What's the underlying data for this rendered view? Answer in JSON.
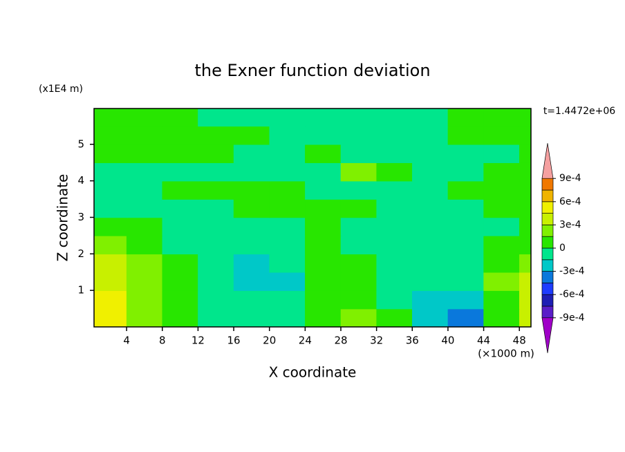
{
  "chart_data": {
    "type": "contour",
    "title": "the Exner function deviation",
    "x_label": "X coordinate",
    "y_label": "Z coordinate",
    "x_unit": "(×1000 m)",
    "y_unit": "(x1E4 m)",
    "time_label": "t=1.4472e+06",
    "xlim": [
      0.35,
      49.3
    ],
    "ylim": [
      0,
      5.98
    ],
    "xticks": [
      4,
      8,
      12,
      16,
      20,
      24,
      28,
      32,
      36,
      40,
      44,
      48
    ],
    "yticks": [
      1,
      2,
      3,
      4,
      5
    ],
    "x": [
      2,
      6,
      10,
      14,
      18,
      22,
      26,
      30,
      34,
      38,
      42,
      46,
      50
    ],
    "y": [
      0.25,
      0.75,
      1.25,
      1.75,
      2.25,
      2.75,
      3.25,
      3.75,
      4.25,
      4.75,
      5.25,
      5.75
    ],
    "z": [
      [
        0.0005,
        0.0002,
        7e-05,
        -7e-05,
        -7e-05,
        -7e-05,
        7e-05,
        0.0002,
        7e-05,
        -0.0002,
        -0.00035,
        7e-05,
        0.00035
      ],
      [
        0.0005,
        0.0002,
        7e-05,
        -7e-05,
        -7e-05,
        -7e-05,
        7e-05,
        7e-05,
        -7e-05,
        -0.0002,
        -0.0002,
        7e-05,
        0.00035
      ],
      [
        0.00035,
        0.0002,
        7e-05,
        -7e-05,
        -0.0002,
        -0.0002,
        7e-05,
        7e-05,
        -7e-05,
        -7e-05,
        -7e-05,
        0.0002,
        0.00035
      ],
      [
        0.00035,
        0.0002,
        7e-05,
        -7e-05,
        -0.0002,
        -7e-05,
        7e-05,
        7e-05,
        -7e-05,
        -7e-05,
        -7e-05,
        7e-05,
        0.0002
      ],
      [
        0.0002,
        7e-05,
        -7e-05,
        -7e-05,
        -7e-05,
        -7e-05,
        7e-05,
        -7e-05,
        -7e-05,
        -7e-05,
        -7e-05,
        7e-05,
        7e-05
      ],
      [
        7e-05,
        7e-05,
        -7e-05,
        -7e-05,
        -7e-05,
        -7e-05,
        7e-05,
        -7e-05,
        -7e-05,
        -7e-05,
        -7e-05,
        -7e-05,
        7e-05
      ],
      [
        -7e-05,
        -7e-05,
        -7e-05,
        -7e-05,
        7e-05,
        7e-05,
        7e-05,
        7e-05,
        -7e-05,
        -7e-05,
        -7e-05,
        7e-05,
        7e-05
      ],
      [
        -7e-05,
        -7e-05,
        7e-05,
        7e-05,
        7e-05,
        7e-05,
        -7e-05,
        -7e-05,
        -7e-05,
        -7e-05,
        7e-05,
        7e-05,
        7e-05
      ],
      [
        -7e-05,
        -7e-05,
        -7e-05,
        -7e-05,
        -7e-05,
        -7e-05,
        -7e-05,
        0.0002,
        7e-05,
        -7e-05,
        -7e-05,
        7e-05,
        7e-05
      ],
      [
        7e-05,
        7e-05,
        7e-05,
        7e-05,
        -7e-05,
        -7e-05,
        7e-05,
        -7e-05,
        -7e-05,
        -7e-05,
        -7e-05,
        -7e-05,
        7e-05
      ],
      [
        7e-05,
        7e-05,
        7e-05,
        7e-05,
        7e-05,
        -7e-05,
        -7e-05,
        -7e-05,
        -7e-05,
        -7e-05,
        7e-05,
        7e-05,
        7e-05
      ],
      [
        7e-05,
        7e-05,
        7e-05,
        -7e-05,
        -7e-05,
        -7e-05,
        -7e-05,
        -7e-05,
        -7e-05,
        -7e-05,
        7e-05,
        7e-05,
        7e-05
      ]
    ],
    "levels": [
      -0.0009,
      -0.00075,
      -0.0006,
      -0.00045,
      -0.0003,
      -0.00015,
      0,
      0.00015,
      0.0003,
      0.00045,
      0.0006,
      0.00075,
      0.0009
    ],
    "colors": [
      "#a000c8",
      "#5a1ec8",
      "#1e1eb4",
      "#1e3cff",
      "#0a78dc",
      "#00c8c8",
      "#00e68c",
      "#28e600",
      "#80f000",
      "#c8f000",
      "#f0f000",
      "#f0b400",
      "#f07800",
      "#f03c00",
      "#f5a0a0"
    ],
    "colorbar_ticks": [
      {
        "value": 0.0009,
        "label": "9e-4"
      },
      {
        "value": 0.0006,
        "label": "6e-4"
      },
      {
        "value": 0.0003,
        "label": "3e-4"
      },
      0,
      {
        "value": -0.0003,
        "label": "-3e-4"
      },
      {
        "value": -0.0006,
        "label": "-6e-4"
      },
      {
        "value": -0.0009,
        "label": "-9e-4"
      }
    ]
  }
}
